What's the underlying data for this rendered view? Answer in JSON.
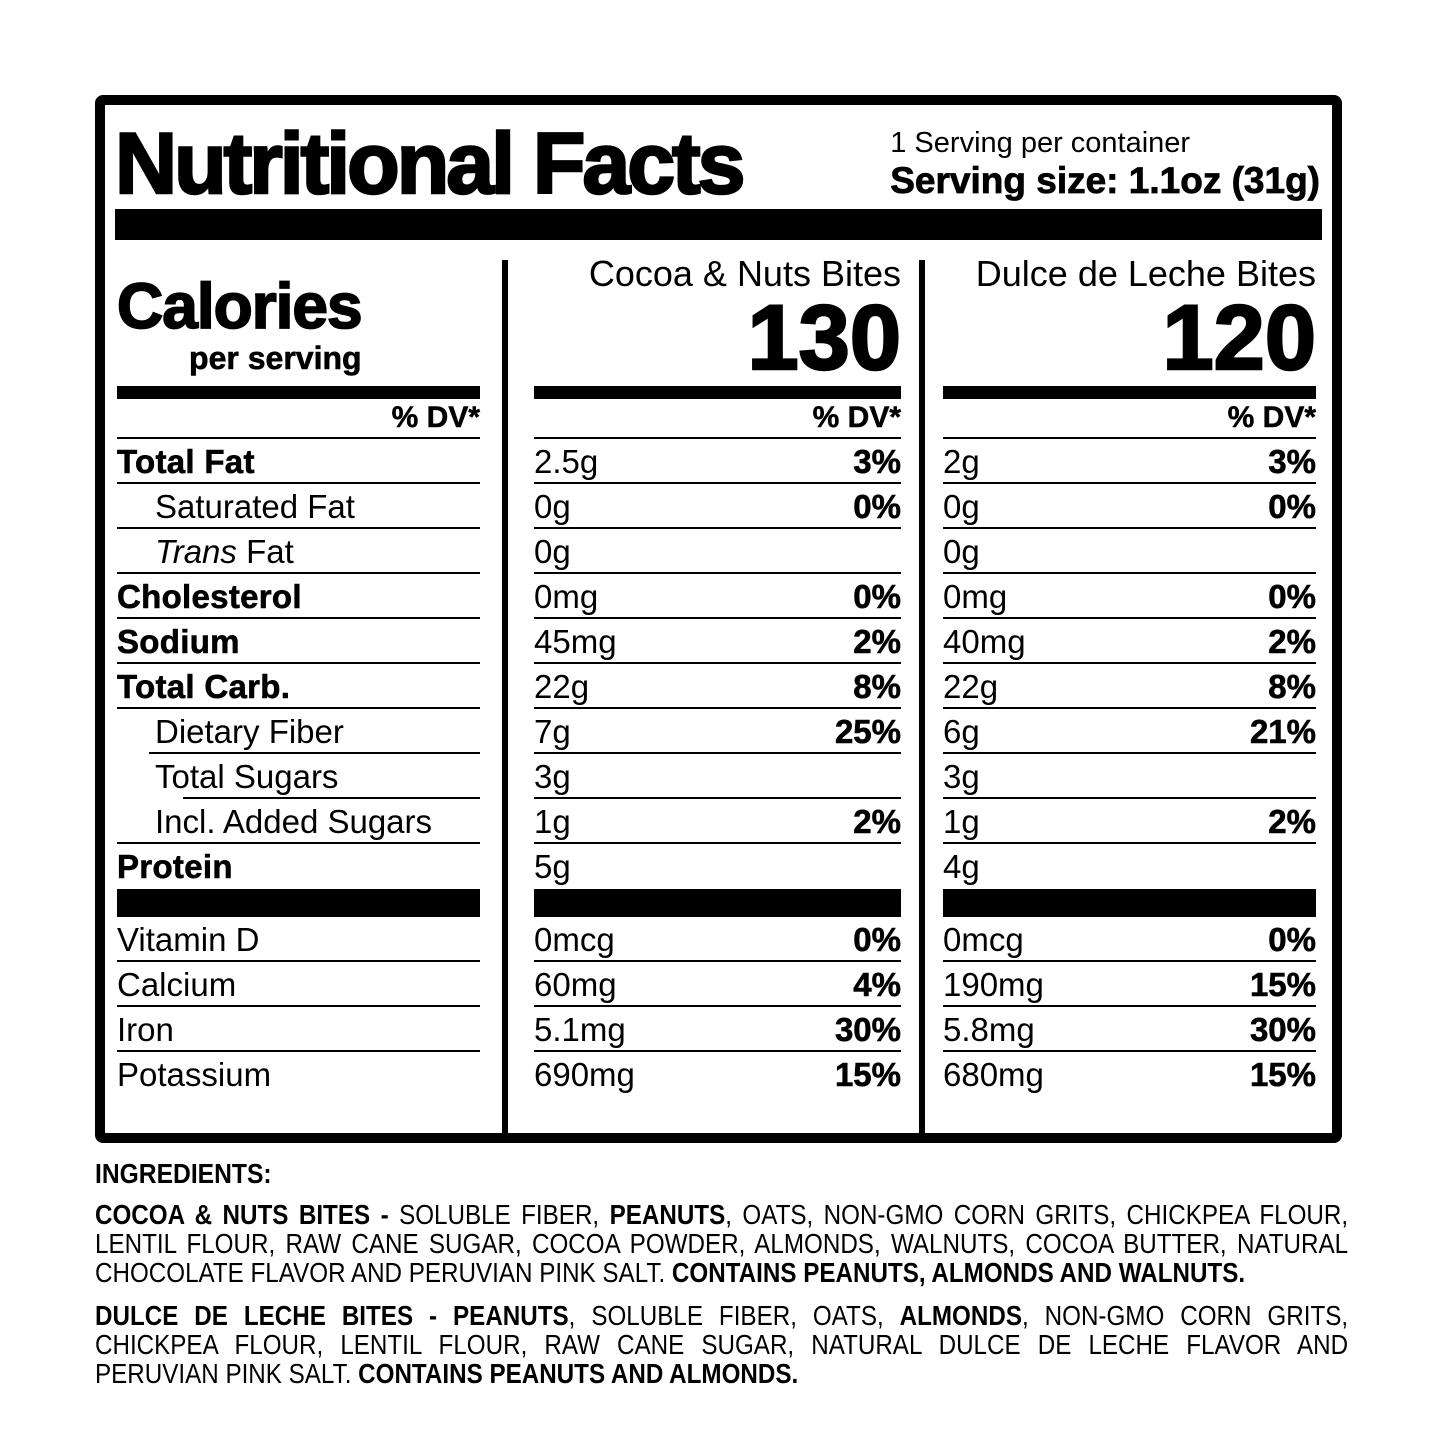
{
  "colors": {
    "ink": "#000000",
    "background": "#ffffff"
  },
  "header": {
    "title": "Nutritional Facts",
    "servings_per_container": "1 Serving per container",
    "serving_size": "Serving size: 1.1oz (31g)"
  },
  "calories": {
    "label": "Calories",
    "sublabel": "per serving",
    "dv_header": "% DV*"
  },
  "products": [
    {
      "name": "Cocoa & Nuts Bites",
      "calories": "130",
      "dv_header": "% DV*"
    },
    {
      "name": "Dulce de Leche Bites",
      "calories": "120",
      "dv_header": "% DV*"
    }
  ],
  "nutrients": [
    {
      "label": "Total Fat",
      "values": [
        {
          "amount": "2.5g",
          "dv": "3%"
        },
        {
          "amount": "2g",
          "dv": "3%"
        }
      ]
    },
    {
      "label": "Saturated Fat",
      "values": [
        {
          "amount": "0g",
          "dv": "0%"
        },
        {
          "amount": "0g",
          "dv": "0%"
        }
      ]
    },
    {
      "label_italic": "Trans",
      "label": " Fat",
      "values": [
        {
          "amount": "0g"
        },
        {
          "amount": "0g"
        }
      ]
    },
    {
      "label": "Cholesterol",
      "values": [
        {
          "amount": "0mg",
          "dv": "0%"
        },
        {
          "amount": "0mg",
          "dv": "0%"
        }
      ]
    },
    {
      "label": "Sodium",
      "values": [
        {
          "amount": "45mg",
          "dv": "2%"
        },
        {
          "amount": "40mg",
          "dv": "2%"
        }
      ]
    },
    {
      "label": "Total Carb.",
      "values": [
        {
          "amount": "22g",
          "dv": "8%"
        },
        {
          "amount": "22g",
          "dv": "8%"
        }
      ]
    },
    {
      "label": "Dietary Fiber",
      "values": [
        {
          "amount": "7g",
          "dv": "25%"
        },
        {
          "amount": "6g",
          "dv": "21%"
        }
      ]
    },
    {
      "label": "Total Sugars",
      "values": [
        {
          "amount": "3g"
        },
        {
          "amount": "3g"
        }
      ]
    },
    {
      "label": "Incl. Added Sugars",
      "values": [
        {
          "amount": "1g",
          "dv": "2%"
        },
        {
          "amount": "1g",
          "dv": "2%"
        }
      ]
    },
    {
      "label": "Protein",
      "values": [
        {
          "amount": "5g"
        },
        {
          "amount": "4g"
        }
      ]
    }
  ],
  "vitamins": [
    {
      "label": "Vitamin D",
      "values": [
        {
          "amount": "0mcg",
          "dv": "0%"
        },
        {
          "amount": "0mcg",
          "dv": "0%"
        }
      ]
    },
    {
      "label": "Calcium",
      "values": [
        {
          "amount": "60mg",
          "dv": "4%"
        },
        {
          "amount": "190mg",
          "dv": "15%"
        }
      ]
    },
    {
      "label": "Iron",
      "values": [
        {
          "amount": "5.1mg",
          "dv": "30%"
        },
        {
          "amount": "5.8mg",
          "dv": "30%"
        }
      ]
    },
    {
      "label": "Potassium",
      "values": [
        {
          "amount": "690mg",
          "dv": "15%"
        },
        {
          "amount": "680mg",
          "dv": "15%"
        }
      ]
    }
  ],
  "ingredients": {
    "heading": "INGREDIENTS:",
    "p1": {
      "s0": "COCOA & NUTS BITES - ",
      "s1": "SOLUBLE FIBER, ",
      "s2": "PEANUTS",
      "s3": ", OATS, NON-GMO CORN GRITS, CHICKPEA FLOUR, LENTIL FLOUR, RAW CANE SUGAR, COCOA POWDER, ALMONDS, WALNUTS, COCOA BUTTER, NATURAL CHOCOLATE FLAVOR AND PERUVIAN PINK SALT. ",
      "s4": "CONTAINS PEANUTS, ALMONDS AND WALNUTS."
    },
    "p2": {
      "s0": "DULCE DE LECHE BITES - PEANUTS",
      "s1": ", SOLUBLE FIBER, OATS, ",
      "s2": "ALMONDS",
      "s3": ", NON-GMO CORN GRITS, CHICKPEA FLOUR, LENTIL FLOUR, RAW CANE SUGAR, NATURAL DULCE DE LECHE FLAVOR AND PERUVIAN PINK SALT. ",
      "s4": "CONTAINS PEANUTS AND ALMONDS."
    }
  }
}
